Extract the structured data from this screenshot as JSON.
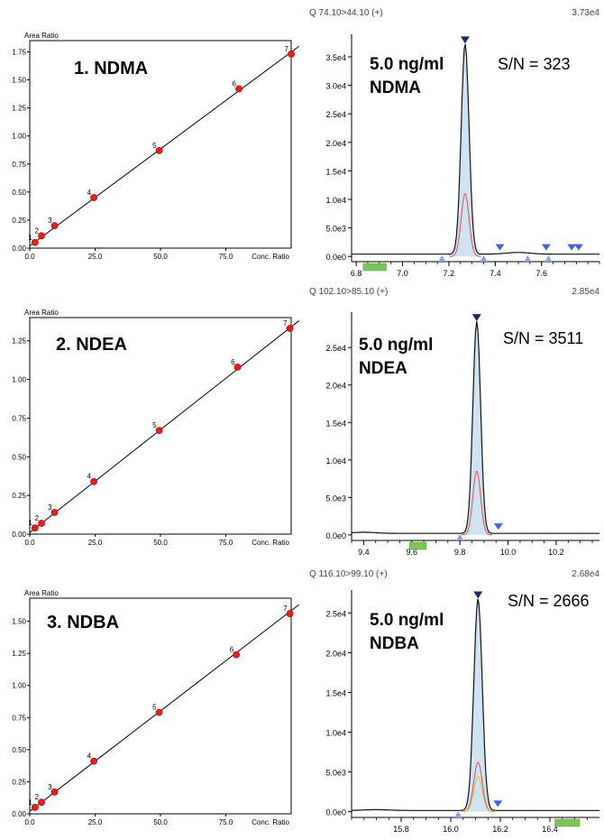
{
  "chart_data": [
    {
      "type": "scatter",
      "title": "1. NDMA",
      "ylabel": "Area Ratio",
      "xlabel": "Conc. Ratio",
      "xlim": [
        0,
        100
      ],
      "ylim": [
        0,
        1.85
      ],
      "xticks": [
        "0.0",
        "25.0",
        "50.0",
        "75.0"
      ],
      "yticks": [
        "0.00",
        "0.25",
        "0.50",
        "0.75",
        "1.00",
        "1.25",
        "1.50",
        "1.75"
      ],
      "points": [
        {
          "label": "1",
          "x": 2,
          "y": 0.05
        },
        {
          "label": "2",
          "x": 4.5,
          "y": 0.11
        },
        {
          "label": "3",
          "x": 9.5,
          "y": 0.2
        },
        {
          "label": "4",
          "x": 24.5,
          "y": 0.45
        },
        {
          "label": "5",
          "x": 49.5,
          "y": 0.87
        },
        {
          "label": "6",
          "x": 80,
          "y": 1.42
        },
        {
          "label": "7",
          "x": 100,
          "y": 1.73
        }
      ],
      "fit": {
        "x": [
          0,
          103
        ],
        "y": [
          0.02,
          1.8
        ]
      }
    },
    {
      "type": "scatter",
      "title": "2. NDEA",
      "ylabel": "Area Ratio",
      "xlabel": "Conc. Ratio",
      "xlim": [
        0,
        100
      ],
      "ylim": [
        0,
        1.4
      ],
      "xticks": [
        "0.0",
        "25.0",
        "50.0",
        "75.0"
      ],
      "yticks": [
        "0.00",
        "0.25",
        "0.50",
        "0.75",
        "1.00",
        "1.25"
      ],
      "points": [
        {
          "label": "1",
          "x": 2,
          "y": 0.04
        },
        {
          "label": "2",
          "x": 4.5,
          "y": 0.07
        },
        {
          "label": "3",
          "x": 9.5,
          "y": 0.14
        },
        {
          "label": "4",
          "x": 24.5,
          "y": 0.34
        },
        {
          "label": "5",
          "x": 49.5,
          "y": 0.67
        },
        {
          "label": "6",
          "x": 79.5,
          "y": 1.08
        },
        {
          "label": "7",
          "x": 99.5,
          "y": 1.33
        }
      ],
      "fit": {
        "x": [
          0,
          103
        ],
        "y": [
          0.01,
          1.38
        ]
      }
    },
    {
      "type": "scatter",
      "title": "3. NDBA",
      "ylabel": "Area Ratio",
      "xlabel": "Conc. Ratio",
      "xlim": [
        0,
        100
      ],
      "ylim": [
        0,
        1.68
      ],
      "xticks": [
        "0.0",
        "25.0",
        "50.0",
        "75.0"
      ],
      "yticks": [
        "0.00",
        "0.25",
        "0.50",
        "0.75",
        "1.00",
        "1.25",
        "1.50"
      ],
      "points": [
        {
          "label": "1",
          "x": 2,
          "y": 0.05
        },
        {
          "label": "2",
          "x": 4.5,
          "y": 0.09
        },
        {
          "label": "3",
          "x": 9.5,
          "y": 0.17
        },
        {
          "label": "4",
          "x": 24.5,
          "y": 0.41
        },
        {
          "label": "5",
          "x": 49.5,
          "y": 0.79
        },
        {
          "label": "6",
          "x": 79,
          "y": 1.24
        },
        {
          "label": "7",
          "x": 99.5,
          "y": 1.56
        }
      ],
      "fit": {
        "x": [
          0,
          103
        ],
        "y": [
          0.02,
          1.63
        ]
      }
    },
    {
      "type": "line",
      "header": "Q 74.10>44.10 (+)",
      "max": "3.73e4",
      "title": "5.0 ng/ml",
      "subtitle": "NDMA",
      "sn": "S/N = 323",
      "xlim": [
        6.78,
        7.85
      ],
      "ylim": [
        -600,
        38000
      ],
      "xticks": [
        6.8,
        7.0,
        7.2,
        7.4,
        7.6
      ],
      "xtick_labels": [
        "6.8",
        "7.0",
        "7.2",
        "7.4",
        "7.6"
      ],
      "yticks": [
        0,
        5000,
        10000,
        15000,
        20000,
        25000,
        30000,
        35000
      ],
      "ytick_labels": [
        "0.0e0",
        "5.0e3",
        "1.0e4",
        "1.5e4",
        "2.0e4",
        "2.5e4",
        "3.0e4",
        "3.5e4"
      ],
      "peak": {
        "rt": 7.27,
        "height": 37300,
        "sigma": 0.017
      },
      "sub_peaks": [
        {
          "height": 11000,
          "color": "#e05050"
        }
      ],
      "baseline": 400,
      "bump": {
        "rt": 7.5,
        "height": 300
      },
      "peak_marker_rt": 7.27,
      "down_markers": [
        7.42,
        7.62,
        7.73,
        7.76
      ],
      "up_markers": [
        7.17,
        7.35,
        7.54,
        7.63
      ],
      "green_bar": [
        6.83,
        6.93
      ]
    },
    {
      "type": "line",
      "header": "Q 102.10>85.10 (+)",
      "max": "2.85e4",
      "title": "5.0 ng/ml",
      "subtitle": "NDEA",
      "sn": "S/N = 3511",
      "xlim": [
        9.35,
        10.38
      ],
      "ylim": [
        -500,
        29000
      ],
      "xticks": [
        9.4,
        9.6,
        9.8,
        10.0,
        10.2
      ],
      "xtick_labels": [
        "9.4",
        "9.6",
        "9.8",
        "10.0",
        "10.2"
      ],
      "yticks": [
        0,
        5000,
        10000,
        15000,
        20000,
        25000
      ],
      "ytick_labels": [
        "0.0e0",
        "5.0e3",
        "1.0e4",
        "1.5e4",
        "2.0e4",
        "2.5e4"
      ],
      "peak": {
        "rt": 9.87,
        "height": 28500,
        "sigma": 0.016
      },
      "sub_peaks": [
        {
          "height": 8500,
          "color": "#e05050"
        }
      ],
      "baseline": 200,
      "bump": {
        "rt": 9.4,
        "height": 150
      },
      "peak_marker_rt": 9.87,
      "down_markers": [
        9.96
      ],
      "up_markers": [
        9.8
      ],
      "green_bar": [
        9.59,
        9.66
      ]
    },
    {
      "type": "line",
      "header": "Q 116.10>99.10 (+)",
      "max": "2.68e4",
      "title": "5.0 ng/ml",
      "subtitle": "NDBA",
      "sn": "S/N = 2666",
      "xlim": [
        15.6,
        16.6
      ],
      "ylim": [
        -500,
        27200
      ],
      "xticks": [
        15.8,
        16.0,
        16.2,
        16.4
      ],
      "xtick_labels": [
        "15.8",
        "16.0",
        "16.2",
        "16.4"
      ],
      "yticks": [
        0,
        5000,
        10000,
        15000,
        20000,
        25000
      ],
      "ytick_labels": [
        "0.0e0",
        "5.0e3",
        "1.0e4",
        "1.5e4",
        "2.0e4",
        "2.5e4"
      ],
      "peak": {
        "rt": 16.11,
        "height": 26800,
        "sigma": 0.017
      },
      "sub_peaks": [
        {
          "height": 6200,
          "color": "#e05050"
        },
        {
          "height": 4400,
          "color": "#d8c040"
        }
      ],
      "baseline": 150,
      "bump": {
        "rt": 15.7,
        "height": 100
      },
      "peak_marker_rt": 16.11,
      "down_markers": [
        16.19
      ],
      "up_markers": [
        16.03
      ],
      "green_bar": [
        16.42,
        16.52
      ]
    }
  ]
}
